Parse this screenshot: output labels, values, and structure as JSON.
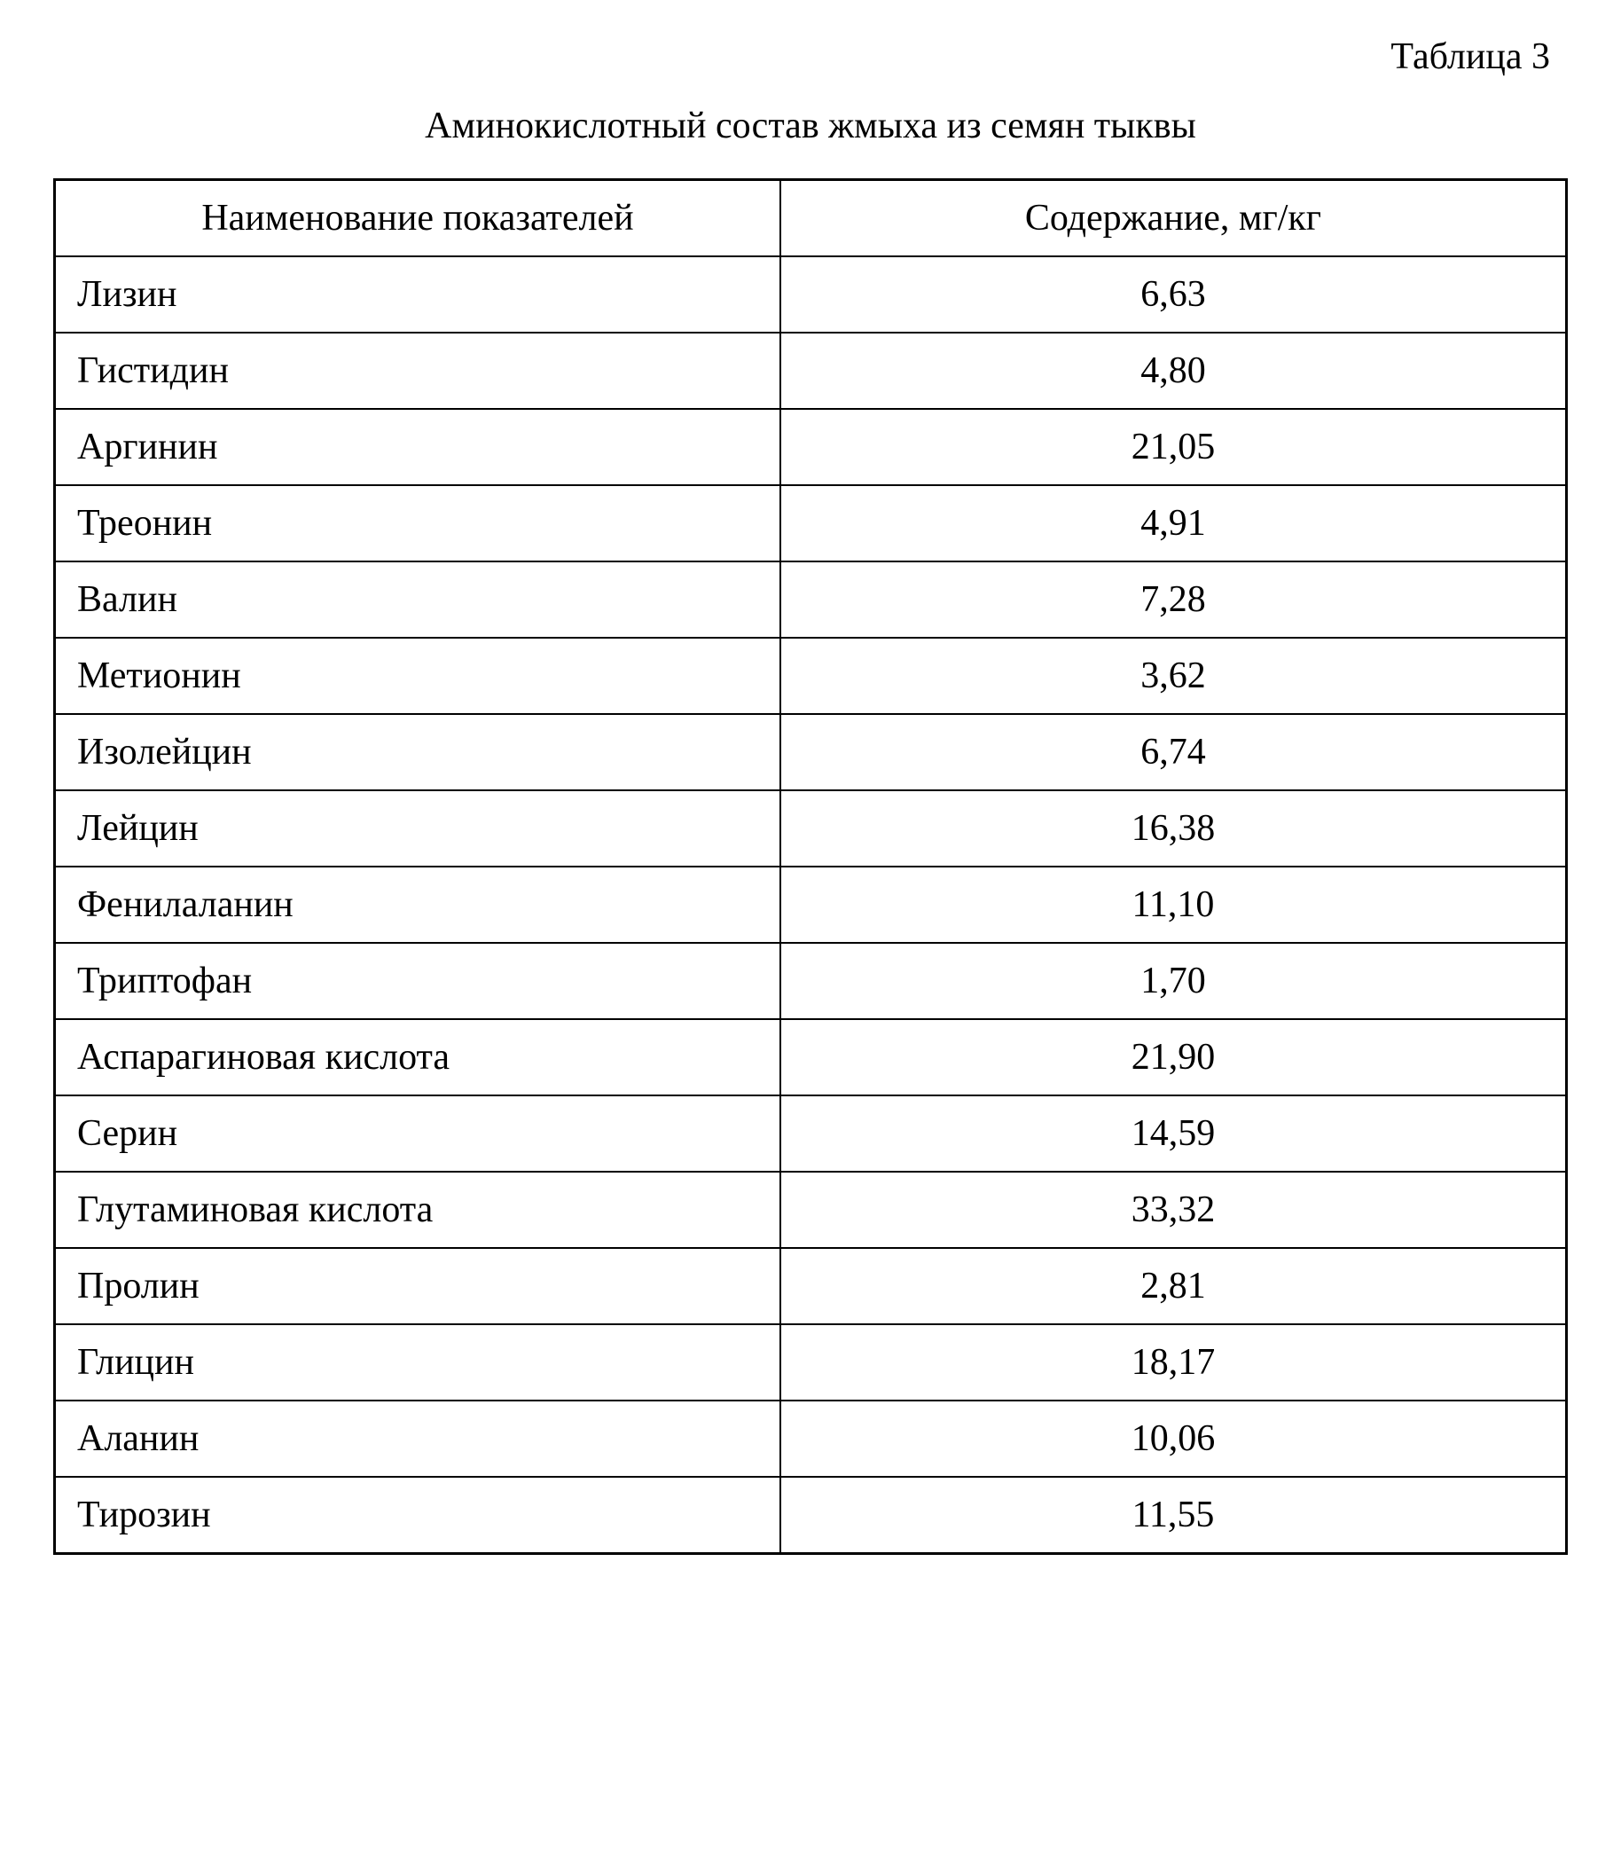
{
  "table_number": "Таблица 3",
  "table_title": "Аминокислотный состав жмыха из семян тыквы",
  "columns": {
    "name": "Наименование показателей",
    "value": "Содержание, мг/кг"
  },
  "rows": [
    {
      "name": "Лизин",
      "value": "6,63"
    },
    {
      "name": "Гистидин",
      "value": "4,80"
    },
    {
      "name": "Аргинин",
      "value": "21,05"
    },
    {
      "name": "Треонин",
      "value": "4,91"
    },
    {
      "name": "Валин",
      "value": "7,28"
    },
    {
      "name": "Метионин",
      "value": "3,62"
    },
    {
      "name": "Изолейцин",
      "value": "6,74"
    },
    {
      "name": "Лейцин",
      "value": "16,38"
    },
    {
      "name": "Фенилаланин",
      "value": "11,10"
    },
    {
      "name": "Триптофан",
      "value": "1,70"
    },
    {
      "name": "Аспарагиновая кислота",
      "value": "21,90"
    },
    {
      "name": "Серин",
      "value": "14,59"
    },
    {
      "name": "Глутаминовая кислота",
      "value": "33,32"
    },
    {
      "name": "Пролин",
      "value": "2,81"
    },
    {
      "name": "Глицин",
      "value": "18,17"
    },
    {
      "name": "Аланин",
      "value": "10,06"
    },
    {
      "name": "Тирозин",
      "value": "11,55"
    }
  ],
  "styling": {
    "font_family": "Times New Roman",
    "font_size_pt": 42,
    "text_color": "#000000",
    "background_color": "#ffffff",
    "border_color": "#000000",
    "border_width_outer": 3,
    "border_width_inner": 2,
    "col1_width_percent": 48,
    "col2_width_percent": 52,
    "col1_align": "left",
    "col2_align": "center",
    "header_align": "center"
  }
}
